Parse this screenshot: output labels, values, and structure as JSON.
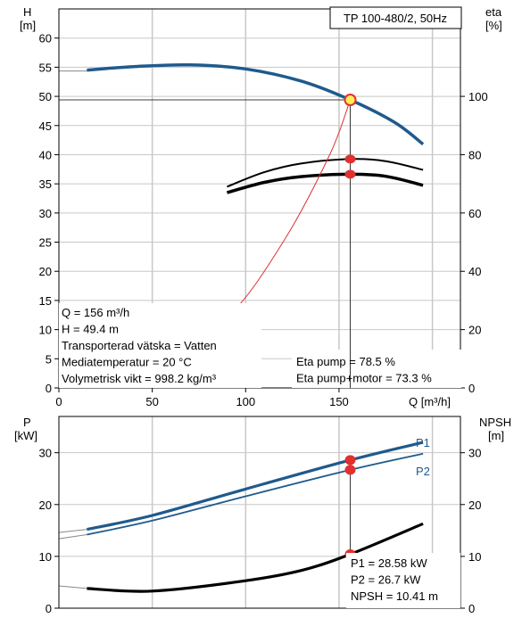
{
  "title": "TP 100-480/2, 50Hz",
  "colors": {
    "blue": "#1f5a8c",
    "black": "#000000",
    "red": "#e03030",
    "grid": "#c8c8c8",
    "pointFill": "#ffee55"
  },
  "chart_data": [
    {
      "type": "line",
      "title": "TP 100-480/2, 50Hz",
      "xlabel": "Q [m³/h]",
      "ylabel": "H [m]",
      "ylabel_right": "eta [%]",
      "xlim": [
        0,
        215
      ],
      "ylim": [
        0,
        65
      ],
      "ylim_right": [
        0,
        130
      ],
      "x_ticks": [
        0,
        50,
        100,
        150
      ],
      "y_ticks": [
        0,
        5,
        10,
        15,
        20,
        25,
        30,
        35,
        40,
        45,
        50,
        55,
        60
      ],
      "y_right_ticks": [
        0,
        20,
        40,
        60,
        80,
        100
      ],
      "grid": true,
      "series": [
        {
          "axis": "left",
          "color": "#1f5a8c",
          "x": [
            15,
            40,
            70,
            100,
            130,
            156,
            180,
            195
          ],
          "y": [
            54.5,
            55.1,
            55.4,
            54.7,
            52.6,
            49.4,
            45.5,
            41.8
          ]
        },
        {
          "axis": "right",
          "color": "#000000",
          "x": [
            90,
            110,
            130,
            156,
            175,
            195
          ],
          "y": [
            69,
            74,
            77,
            78.5,
            77.8,
            74.8
          ]
        },
        {
          "axis": "right",
          "color": "#000000",
          "x": [
            90,
            110,
            130,
            156,
            175,
            195
          ],
          "y": [
            67,
            70.5,
            72.5,
            73.3,
            72.6,
            69.5
          ]
        },
        {
          "axis": "left",
          "color": "#e03030",
          "x": [
            0,
            50,
            90,
            120,
            145,
            156
          ],
          "y": [
            0,
            3.5,
            12,
            25,
            40,
            49.4
          ]
        }
      ],
      "operating_point": {
        "x": 156,
        "y": 49.4
      },
      "info_left": [
        "Q = 156 m³/h",
        "H = 49.4 m",
        "Transporterad vätska = Vatten",
        "Mediatemperatur = 20 °C",
        "Volymetrisk vikt = 998.2 kg/m³"
      ],
      "info_right": [
        "Eta pump = 78.5 %",
        "Eta pump+motor = 73.3 %"
      ]
    },
    {
      "type": "line",
      "ylabel": "P [kW]",
      "ylabel_right": "NPSH [m]",
      "xlim": [
        0,
        215
      ],
      "ylim": [
        0,
        37
      ],
      "ylim_right": [
        0,
        37
      ],
      "y_ticks": [
        0,
        10,
        20,
        30
      ],
      "y_right_ticks": [
        0,
        10,
        20,
        30
      ],
      "grid": true,
      "series": [
        {
          "name": "P1",
          "color": "#1f5a8c",
          "x": [
            15,
            50,
            100,
            156,
            195
          ],
          "y": [
            15.2,
            17.9,
            23,
            28.58,
            32
          ]
        },
        {
          "name": "P2",
          "color": "#1f5a8c",
          "x": [
            15,
            50,
            100,
            156,
            195
          ],
          "y": [
            14.2,
            16.9,
            21.6,
            26.7,
            29.8
          ]
        },
        {
          "name": "",
          "color": "#000000",
          "x": [
            15,
            50,
            100,
            130,
            156,
            195
          ],
          "y": [
            3.8,
            3.3,
            5.3,
            7.3,
            10.41,
            16.3
          ]
        }
      ],
      "markers": [
        28.58,
        26.7,
        10.41
      ],
      "info_right": [
        "P1 = 28.58 kW",
        "P2 = 26.7 kW",
        "NPSH = 10.41 m"
      ]
    }
  ]
}
